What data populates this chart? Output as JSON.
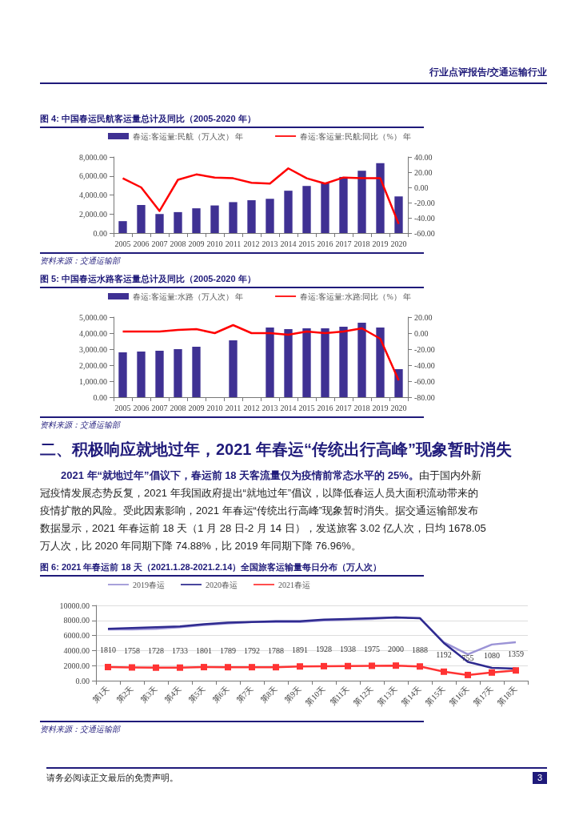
{
  "chart_data": [
    {
      "type": "other",
      "annotations": [
        "行业点评报告/交通运输行业"
      ]
    },
    {
      "type": "bar",
      "title": "图 4: 中国春运民航客运量总计及同比（2005-2020 年）",
      "categories": [
        "2005",
        "2006",
        "2007",
        "2008",
        "2009",
        "2010",
        "2011",
        "2012",
        "2013",
        "2014",
        "2015",
        "2016",
        "2017",
        "2018",
        "2019",
        "2020"
      ],
      "series": [
        {
          "name": "春运:客运量:民航（万人次） 年",
          "type": "bar",
          "color": "#3f3193",
          "values": [
            1250,
            2950,
            2000,
            2200,
            2600,
            2900,
            3250,
            3450,
            3600,
            4450,
            4950,
            5300,
            5900,
            6550,
            7350,
            3850
          ]
        },
        {
          "name": "春运:客运量:民航:同比（%） 年",
          "type": "line",
          "axis": "y2",
          "color": "#ff0000",
          "values": [
            12,
            0,
            -31,
            10,
            17,
            13,
            12,
            6,
            5,
            25,
            12,
            5,
            13,
            12,
            12,
            -48
          ]
        }
      ],
      "ylim": [
        0,
        8000
      ],
      "yticks": [
        {
          "value": 0,
          "label": "0.00"
        },
        {
          "value": 2000,
          "label": "2,000.00"
        },
        {
          "value": 4000,
          "label": "4,000.00"
        },
        {
          "value": 6000,
          "label": "6,000.00"
        },
        {
          "value": 8000,
          "label": "8,000.00"
        }
      ],
      "y2lim": [
        -60,
        40
      ],
      "y2ticks": [
        {
          "value": -60,
          "label": "-60.00"
        },
        {
          "value": -40,
          "label": "-40.00"
        },
        {
          "value": -20,
          "label": "-20.00"
        },
        {
          "value": 0,
          "label": "0.00"
        },
        {
          "value": 20,
          "label": "20.00"
        },
        {
          "value": 40,
          "label": "40.00"
        }
      ],
      "legend": "top",
      "annotations": [
        "资料来源：交通运输部"
      ]
    },
    {
      "type": "bar",
      "title": "图 5: 中国春运水路客运量总计及同比（2005-2020 年）",
      "categories": [
        "2005",
        "2006",
        "2007",
        "2008",
        "2009",
        "2010",
        "2011",
        "2012",
        "2013",
        "2014",
        "2015",
        "2016",
        "2017",
        "2018",
        "2019",
        "2020"
      ],
      "series": [
        {
          "name": "春运:客运量:水路（万人次） 年",
          "type": "bar",
          "color": "#3f3193",
          "values": [
            2800,
            2850,
            2900,
            3000,
            3150,
            null,
            3550,
            null,
            4350,
            4250,
            4300,
            4300,
            4400,
            4650,
            4350,
            1750
          ]
        },
        {
          "name": "春运:客运量:水路:同比（%） 年",
          "type": "line",
          "axis": "y2",
          "color": "#ff0000",
          "values": [
            2,
            2,
            2,
            4,
            5,
            0,
            10,
            0,
            0,
            -2,
            2,
            0,
            2,
            6,
            -7,
            -59
          ]
        }
      ],
      "ylim": [
        0,
        5000
      ],
      "yticks": [
        {
          "value": 0,
          "label": "0.00"
        },
        {
          "value": 1000,
          "label": "1,000.00"
        },
        {
          "value": 2000,
          "label": "2,000.00"
        },
        {
          "value": 3000,
          "label": "3,000.00"
        },
        {
          "value": 4000,
          "label": "4,000.00"
        },
        {
          "value": 5000,
          "label": "5,000.00"
        }
      ],
      "y2lim": [
        -80,
        20
      ],
      "y2ticks": [
        {
          "value": -80,
          "label": "-80.00"
        },
        {
          "value": -60,
          "label": "-60.00"
        },
        {
          "value": -40,
          "label": "-40.00"
        },
        {
          "value": -20,
          "label": "-20.00"
        },
        {
          "value": 0,
          "label": "0.00"
        },
        {
          "value": 20,
          "label": "20.00"
        }
      ],
      "legend": "top",
      "annotations": [
        "资料来源：交通运输部"
      ]
    },
    {
      "type": "other",
      "title": "二、积极响应就地过年，2021 年春运“传统出行高峰”现象暂时消失",
      "annotations": [
        "2021 年“就地过年”倡议下，春运前 18 天客流量仅为疫情前常态水平的 25%。",
        "由于国内外新冠疫情发展态势反复，2021 年我国政府提出“就地过年”倡议，以降低春运人员大面积流动带来的疫情扩散的风险。受此因素影响，2021 年春运“传统出行高峰”现象暂时消失。据交通运输部发布数据显示，2021 年春运前 18 天（1 月 28 日-2 月 14 日），发送旅客 3.02 亿人次，日均 1678.05 万人次，比 2020 年同期下降 74.88%，比 2019 年同期下降 76.96%。"
      ]
    },
    {
      "type": "line",
      "title": "图 6: 2021 年春运前 18 天（2021.1.28-2021.2.14）全国旅客运输量每日分布（万人次）",
      "categories": [
        "第1天",
        "第2天",
        "第3天",
        "第4天",
        "第5天",
        "第6天",
        "第7天",
        "第8天",
        "第9天",
        "第10天",
        "第11天",
        "第12天",
        "第13天",
        "第14天",
        "第15天",
        "第16天",
        "第17天",
        "第18天"
      ],
      "series": [
        {
          "name": "2019春运",
          "color": "#9b93d6",
          "marker": "none",
          "values": [
            6800,
            6800,
            6900,
            7100,
            7400,
            7600,
            7800,
            7800,
            7800,
            8000,
            8100,
            8200,
            8400,
            8300,
            5100,
            3500,
            4800,
            5100
          ]
        },
        {
          "name": "2020春运",
          "color": "#2e2a8f",
          "marker": "none",
          "values": [
            6900,
            7000,
            7100,
            7200,
            7500,
            7700,
            7800,
            7900,
            7900,
            8100,
            8200,
            8300,
            8400,
            8300,
            5000,
            2500,
            1700,
            1600
          ]
        },
        {
          "name": "2021春运",
          "color": "#ff3333",
          "marker": "square",
          "values": [
            1810,
            1758,
            1728,
            1733,
            1801,
            1789,
            1792,
            1788,
            1891,
            1928,
            1938,
            1975,
            2000,
            1888,
            1192,
            755,
            1080,
            1359
          ],
          "value_labels": [
            "1810",
            "1758",
            "1728",
            "1733",
            "1801",
            "1789",
            "1792",
            "1788",
            "1891",
            "1928",
            "1938",
            "1975",
            "2000",
            "1888",
            "1192",
            "755",
            "1080",
            "1359"
          ]
        }
      ],
      "ylim": [
        0,
        10000
      ],
      "yticks": [
        {
          "value": 0,
          "label": "0.00"
        },
        {
          "value": 2000,
          "label": "2000.00"
        },
        {
          "value": 4000,
          "label": "4000.00"
        },
        {
          "value": 6000,
          "label": "6000.00"
        },
        {
          "value": 8000,
          "label": "8000.00"
        },
        {
          "value": 10000,
          "label": "10000.00"
        }
      ],
      "grid": "y",
      "legend": "top",
      "annotations": [
        "资料来源：交通运输部"
      ]
    },
    {
      "type": "other",
      "annotations": [
        "请务必阅读正文最后的免责声明。",
        "3"
      ]
    }
  ]
}
